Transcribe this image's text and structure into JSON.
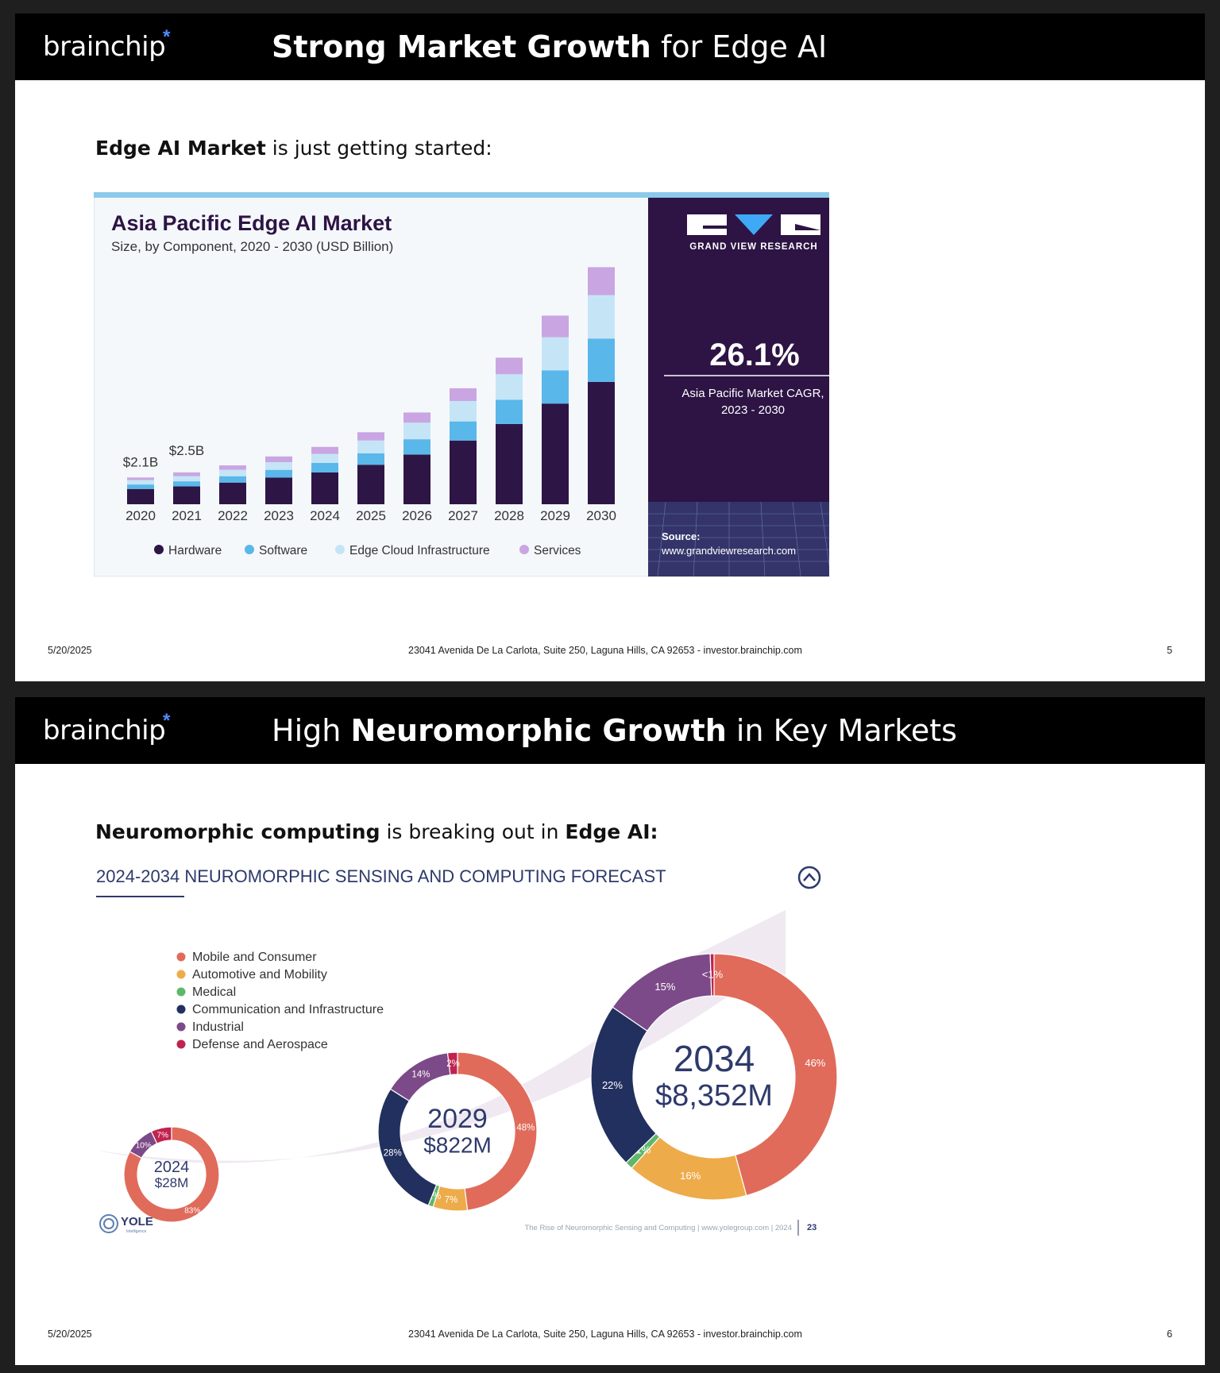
{
  "slides": [
    {
      "logo": "brainchip",
      "logo_mark": "*",
      "title_bold": "Strong Market Growth",
      "title_rest": "for Edge AI",
      "subtitle_bold": "Edge AI Market",
      "subtitle_rest": "is just getting started:",
      "footer": {
        "date": "5/20/2025",
        "address": "23041 Avenida De La Carlota, Suite 250, Laguna Hills, CA 92653 - investor.brainchip.com",
        "page": "5"
      }
    },
    {
      "logo": "brainchip",
      "logo_mark": "*",
      "title_pre": "High",
      "title_bold": "Neuromorphic Growth",
      "title_rest": "in Key Markets",
      "subtitle_bold": "Neuromorphic computing",
      "subtitle_mid": "is breaking out in",
      "subtitle_bold2": "Edge AI:",
      "footer": {
        "date": "5/20/2025",
        "address": "23041 Avenida De La Carlota, Suite 250, Laguna Hills, CA 92653 - investor.brainchip.com",
        "page": "6"
      }
    }
  ],
  "colors": {
    "hardware": "#2d1646",
    "software": "#5ab7ea",
    "cloud": "#c5e5f7",
    "services": "#c9a6e2",
    "panel": "#2d1444",
    "mobile": "#e06b5b",
    "auto": "#eeab4a",
    "medical": "#5fb86a",
    "comm": "#22305f",
    "industrial": "#7c4a88",
    "defense": "#c0234f"
  },
  "chart_data": [
    {
      "type": "bar",
      "stacked": true,
      "title": "Asia Pacific Edge AI Market",
      "subtitle": "Size, by Component, 2020 - 2030 (USD Billion)",
      "categories": [
        "2020",
        "2021",
        "2022",
        "2023",
        "2024",
        "2025",
        "2026",
        "2027",
        "2028",
        "2029",
        "2030"
      ],
      "series": [
        {
          "name": "Hardware",
          "values": [
            1.2,
            1.4,
            1.7,
            2.1,
            2.5,
            3.1,
            3.9,
            5.0,
            6.3,
            7.9,
            9.6
          ]
        },
        {
          "name": "Software",
          "values": [
            0.35,
            0.4,
            0.5,
            0.6,
            0.75,
            0.9,
            1.2,
            1.5,
            1.9,
            2.6,
            3.4
          ]
        },
        {
          "name": "Edge Cloud Infrastructure",
          "values": [
            0.35,
            0.4,
            0.5,
            0.6,
            0.7,
            1.0,
            1.3,
            1.6,
            2.0,
            2.6,
            3.4
          ]
        },
        {
          "name": "Services",
          "values": [
            0.2,
            0.3,
            0.35,
            0.45,
            0.55,
            0.65,
            0.8,
            1.0,
            1.3,
            1.7,
            2.2
          ]
        }
      ],
      "data_labels": [
        {
          "category": "2020",
          "text": "$2.1B"
        },
        {
          "category": "2021",
          "text": "$2.5B"
        }
      ],
      "ylim": [
        0,
        19
      ],
      "legend_position": "bottom",
      "side_panel": {
        "brand": "GRAND VIEW RESEARCH",
        "cagr": "26.1%",
        "cagr_label_1": "Asia Pacific Market CAGR,",
        "cagr_label_2": "2023 - 2030",
        "source_label": "Source:",
        "source_url": "www.grandviewresearch.com"
      }
    },
    {
      "type": "pie",
      "variant": "donut",
      "title": "2024-2034 NEUROMORPHIC SENSING AND COMPUTING FORECAST",
      "legend": [
        "Mobile and Consumer",
        "Automotive and Mobility",
        "Medical",
        "Communication and Infrastructure",
        "Industrial",
        "Defense and Aerospace"
      ],
      "donuts": [
        {
          "year": "2024",
          "value": "$28M",
          "slices": [
            {
              "name": "Mobile and Consumer",
              "pct": 83,
              "label": "83%"
            },
            {
              "name": "Industrial",
              "pct": 10,
              "label": "10%"
            },
            {
              "name": "Defense and Aerospace",
              "pct": 7,
              "label": "7%"
            }
          ]
        },
        {
          "year": "2029",
          "value": "$822M",
          "slices": [
            {
              "name": "Mobile and Consumer",
              "pct": 48,
              "label": "48%"
            },
            {
              "name": "Automotive and Mobility",
              "pct": 7,
              "label": "7%"
            },
            {
              "name": "Medical",
              "pct": 1,
              "label": "1%"
            },
            {
              "name": "Communication and Infrastructure",
              "pct": 28,
              "label": "28%"
            },
            {
              "name": "Industrial",
              "pct": 14,
              "label": "14%"
            },
            {
              "name": "Defense and Aerospace",
              "pct": 2,
              "label": "2%"
            }
          ]
        },
        {
          "year": "2034",
          "value": "$8,352M",
          "slices": [
            {
              "name": "Mobile and Consumer",
              "pct": 46,
              "label": "46%"
            },
            {
              "name": "Automotive and Mobility",
              "pct": 16,
              "label": "16%"
            },
            {
              "name": "Medical",
              "pct": 1,
              "label": "1%"
            },
            {
              "name": "Communication and Infrastructure",
              "pct": 22,
              "label": "22%"
            },
            {
              "name": "Industrial",
              "pct": 15,
              "label": "15%"
            },
            {
              "name": "Defense and Aerospace",
              "pct": 0.5,
              "label": "<1%"
            }
          ]
        }
      ],
      "brand": "YOLE",
      "brand_sub": "Intelligence",
      "source_note": "The Rise of Neuromorphic Sensing and Computing | www.yolegroup.com | 2024",
      "page_number": "23"
    }
  ]
}
